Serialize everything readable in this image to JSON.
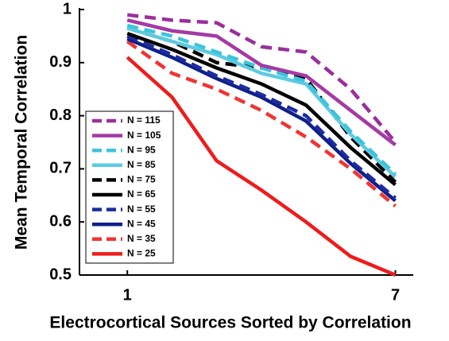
{
  "chart_data": {
    "type": "line",
    "x_label": "Electrocortical Sources Sorted by Correlation",
    "y_label": "Mean Temporal Correlation",
    "x": [
      1,
      2,
      3,
      4,
      5,
      6,
      7
    ],
    "xlim": [
      0,
      7.4
    ],
    "xticks": [
      1,
      7
    ],
    "ylim": [
      0.5,
      1
    ],
    "yticks": [
      {
        "value": 0.5,
        "label": "0.5"
      },
      {
        "value": 0.6,
        "label": "0.6"
      },
      {
        "value": 0.7,
        "label": "0.7"
      },
      {
        "value": 0.8,
        "label": "0.8"
      },
      {
        "value": 0.9,
        "label": "0.9"
      },
      1
    ],
    "legend": "lower left",
    "series": [
      {
        "name": "N = 115",
        "color": "#9b2f9b",
        "dashed": true,
        "values": [
          0.99,
          0.98,
          0.975,
          0.93,
          0.92,
          0.85,
          0.75
        ]
      },
      {
        "name": "N = 105",
        "color": "#a43aa4",
        "dashed": false,
        "values": [
          0.98,
          0.96,
          0.95,
          0.895,
          0.875,
          0.81,
          0.745
        ]
      },
      {
        "name": "N = 95",
        "color": "#3cc4dc",
        "dashed": true,
        "values": [
          0.97,
          0.95,
          0.92,
          0.89,
          0.865,
          0.77,
          0.69
        ]
      },
      {
        "name": "N = 85",
        "color": "#5ccbe2",
        "dashed": false,
        "values": [
          0.965,
          0.94,
          0.915,
          0.88,
          0.86,
          0.765,
          0.685
        ]
      },
      {
        "name": "N = 75",
        "color": "#000000",
        "dashed": true,
        "values": [
          0.965,
          0.94,
          0.9,
          0.89,
          0.87,
          0.76,
          0.675
        ]
      },
      {
        "name": "N = 65",
        "color": "#000000",
        "dashed": false,
        "values": [
          0.955,
          0.925,
          0.89,
          0.86,
          0.82,
          0.74,
          0.67
        ]
      },
      {
        "name": "N = 55",
        "color": "#1c2ca0",
        "dashed": true,
        "values": [
          0.95,
          0.915,
          0.875,
          0.84,
          0.8,
          0.715,
          0.645
        ]
      },
      {
        "name": "N = 45",
        "color": "#0f1f8a",
        "dashed": false,
        "values": [
          0.945,
          0.91,
          0.87,
          0.835,
          0.79,
          0.71,
          0.64
        ]
      },
      {
        "name": "N = 35",
        "color": "#f03434",
        "dashed": true,
        "values": [
          0.94,
          0.88,
          0.85,
          0.81,
          0.76,
          0.7,
          0.63
        ]
      },
      {
        "name": "N = 25",
        "color": "#ee1c1c",
        "dashed": false,
        "values": [
          0.91,
          0.835,
          0.715,
          0.66,
          0.6,
          0.535,
          0.5
        ]
      }
    ]
  }
}
